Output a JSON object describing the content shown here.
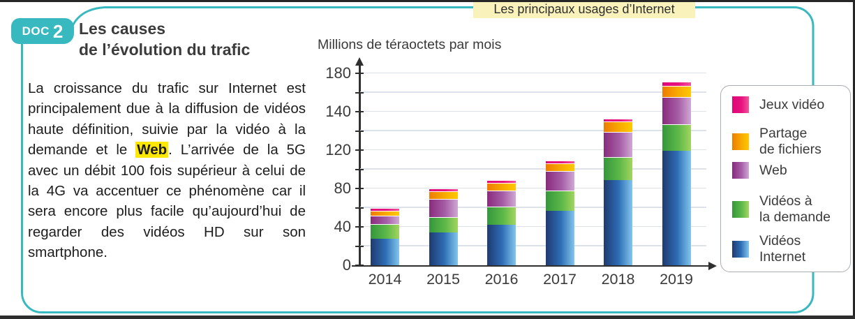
{
  "page": {
    "badge": {
      "label": "DOC",
      "number": "2"
    },
    "title_lines": [
      "Les causes",
      "de l’évolution du trafic"
    ],
    "body": {
      "pre": "La croissance du trafic sur Internet est principalement due à la diffusion de vidéos haute définition, suivie par la vidéo à la demande et le ",
      "highlight": "Web",
      "post": ". L’arrivée de la 5G avec un débit 100 fois supérieur à celui de la 4G va accentuer ce phénomène car il sera encore plus facile qu’aujourd’hui de regarder des vidéos HD sur son smartphone."
    },
    "colors": {
      "frame_teal": "#38b9bf",
      "text_highlight_yellow": "#ffe800",
      "chart_title_box_yellow": "#f9f3bb"
    }
  },
  "chart": {
    "title_box": "Les principaux usages d’Internet",
    "axis_title": "Millions de téraoctets par mois",
    "y_tick_labels_printed": [
      "0",
      "40",
      "80",
      "120",
      "140",
      "180"
    ],
    "legend": [
      {
        "id": "jeux",
        "lines": [
          "Jeux vidéo"
        ]
      },
      {
        "id": "partage",
        "lines": [
          "Partage",
          "de fichiers"
        ]
      },
      {
        "id": "web",
        "lines": [
          "Web"
        ]
      },
      {
        "id": "vod",
        "lines": [
          "Vidéos à",
          "la demande"
        ]
      },
      {
        "id": "videos-internet",
        "lines": [
          "Vidéos",
          "Internet"
        ]
      }
    ]
  },
  "chart_data": {
    "type": "bar",
    "stacked": true,
    "title": "Les principaux usages d’Internet",
    "ylabel": "Millions de téraoctets par mois",
    "categories": [
      "2014",
      "2015",
      "2016",
      "2017",
      "2018",
      "2019"
    ],
    "series": [
      {
        "id": "videos-internet",
        "name": "Vidéos Internet",
        "color": "#2d6db5",
        "values": [
          28,
          34,
          42,
          57,
          89,
          119
        ]
      },
      {
        "id": "vod",
        "name": "Vidéos à la demande",
        "color": "#5cb849",
        "values": [
          15,
          16,
          19,
          21,
          24,
          28
        ]
      },
      {
        "id": "web",
        "name": "Web",
        "color": "#9c4f9b",
        "values": [
          9,
          19,
          17,
          20,
          26,
          28
        ]
      },
      {
        "id": "partage",
        "name": "Partage de fichiers",
        "color": "#f5a000",
        "values": [
          5,
          8,
          8,
          8,
          11,
          12
        ]
      },
      {
        "id": "jeux",
        "name": "Jeux vidéo",
        "color": "#e5127d",
        "values": [
          3,
          3,
          3,
          3,
          3,
          4
        ]
      }
    ],
    "y_axis": {
      "unit_per_gridline": 20,
      "gridline_count": 11,
      "printed_labels_bottom_to_top": [
        "0",
        "40",
        "80",
        "120",
        "140",
        "180"
      ],
      "note_labels_on_every_other_gridline": true
    },
    "legend_position": "right",
    "grid": true
  }
}
